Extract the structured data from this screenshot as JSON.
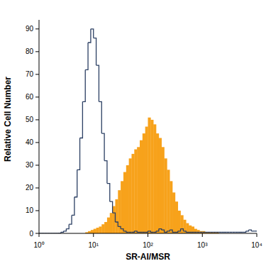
{
  "chart_data": {
    "type": "histogram",
    "x_label": "SR-AI/MSR",
    "y_label": "Relative Cell Number",
    "log": "x",
    "xlim": [
      1,
      10000
    ],
    "xticks": [
      {
        "value": 1,
        "label": "10⁰"
      },
      {
        "value": 10,
        "label": "10¹"
      },
      {
        "value": 100,
        "label": "10²"
      },
      {
        "value": 1000,
        "label": "10³"
      },
      {
        "value": 10000,
        "label": "10⁴"
      }
    ],
    "ylim": [
      0,
      94
    ],
    "yticks": [
      0,
      10,
      20,
      30,
      40,
      50,
      60,
      70,
      80,
      90
    ],
    "grid": false,
    "bins": [
      1,
      1.122,
      1.259,
      1.413,
      1.585,
      1.778,
      1.995,
      2.239,
      2.512,
      2.818,
      3.162,
      3.548,
      3.981,
      4.467,
      5.012,
      5.623,
      6.31,
      7.079,
      7.943,
      8.913,
      10,
      11.22,
      12.59,
      14.13,
      15.85,
      17.78,
      19.95,
      22.39,
      25.12,
      28.18,
      31.62,
      35.48,
      39.81,
      44.67,
      50.12,
      56.23,
      63.1,
      70.79,
      79.43,
      89.13,
      100,
      112.2,
      125.9,
      141.3,
      158.5,
      177.8,
      199.5,
      223.9,
      251.2,
      281.8,
      316.2,
      354.8,
      398.1,
      446.7,
      501.2,
      562.3,
      631,
      707.9,
      794.3,
      891.3,
      1000,
      1122,
      1259,
      1413,
      1585,
      1778,
      1995,
      2239,
      2512,
      2818,
      3162,
      3548,
      3981,
      4467,
      5012,
      5623,
      6310,
      7079,
      7943,
      8913,
      10000
    ],
    "series": [
      {
        "type": "step",
        "color": "#2b3f63",
        "values": [
          0,
          0,
          0,
          0,
          0,
          0,
          0,
          0,
          0.5,
          1,
          2,
          4,
          8,
          16,
          28,
          42,
          58,
          72,
          84,
          90,
          86,
          74,
          58,
          44,
          32,
          22,
          14,
          9,
          5,
          3,
          2,
          1,
          0.5,
          0.5,
          0.5,
          1,
          0.5,
          0.5,
          0.5,
          0.5,
          1,
          0.5,
          0.5,
          1,
          2,
          1.5,
          0.5,
          1,
          1.5,
          0.5,
          0.5,
          1,
          2,
          1,
          0.5,
          0.5,
          0.5,
          0.5,
          0.5,
          0.5,
          0.5,
          0.5,
          0.5,
          0.5,
          0.5,
          0.5,
          0.5,
          0.5,
          0.5,
          0.5,
          0.5,
          0.5,
          0.5,
          0.5,
          0.5,
          0.5,
          1,
          1.5,
          1,
          1
        ]
      },
      {
        "type": "bar",
        "color": "#f7a21b",
        "values": [
          0,
          0,
          0,
          0,
          0,
          0,
          0,
          0,
          0,
          0,
          0,
          0,
          0,
          0,
          0,
          0,
          0,
          0.5,
          1,
          1.5,
          2,
          2.5,
          3,
          4,
          5,
          7,
          9,
          12,
          15,
          19,
          23,
          27,
          30,
          33,
          35,
          37,
          38,
          41,
          44,
          47,
          51,
          50,
          48,
          44,
          42,
          38,
          33,
          28,
          23,
          18,
          14,
          10,
          8,
          6,
          4.5,
          3.5,
          3,
          2,
          1.5,
          1,
          1,
          0.5,
          0.5,
          0.5,
          0.5,
          0.5,
          0,
          0,
          0,
          0,
          0,
          0,
          0,
          0,
          0,
          0,
          0,
          0,
          0,
          0
        ]
      }
    ]
  }
}
